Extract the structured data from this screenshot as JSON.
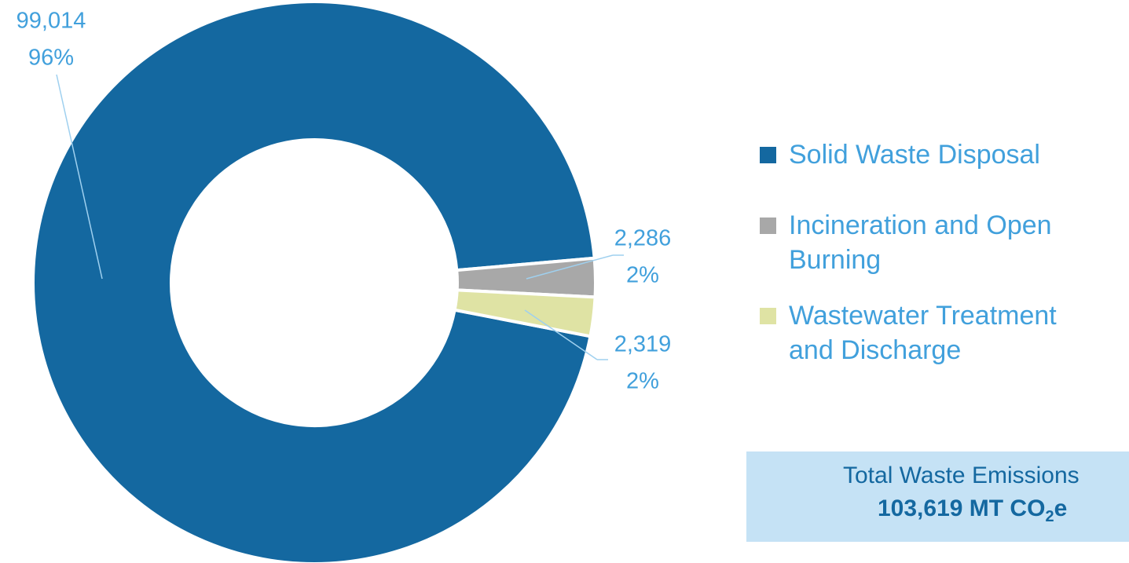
{
  "chart_data": {
    "type": "donut",
    "categories": [
      "Solid Waste Disposal",
      "Incineration and Open Burning",
      "Wastewater Treatment and Discharge"
    ],
    "series": [
      {
        "values": [
          99014,
          2286,
          2319
        ],
        "value_labels": [
          "99,014",
          "2,286",
          "2,319"
        ],
        "percentages": [
          96,
          2,
          2
        ],
        "percent_labels": [
          "96%",
          "2%",
          "2%"
        ],
        "colors": [
          "#1468a0",
          "#a8a8a8",
          "#dfe3a4"
        ]
      }
    ],
    "legend": "right",
    "total": {
      "label": "Total Waste Emissions",
      "value_text": "103,619 MT CO",
      "subscript": "2",
      "suffix": "e"
    }
  }
}
